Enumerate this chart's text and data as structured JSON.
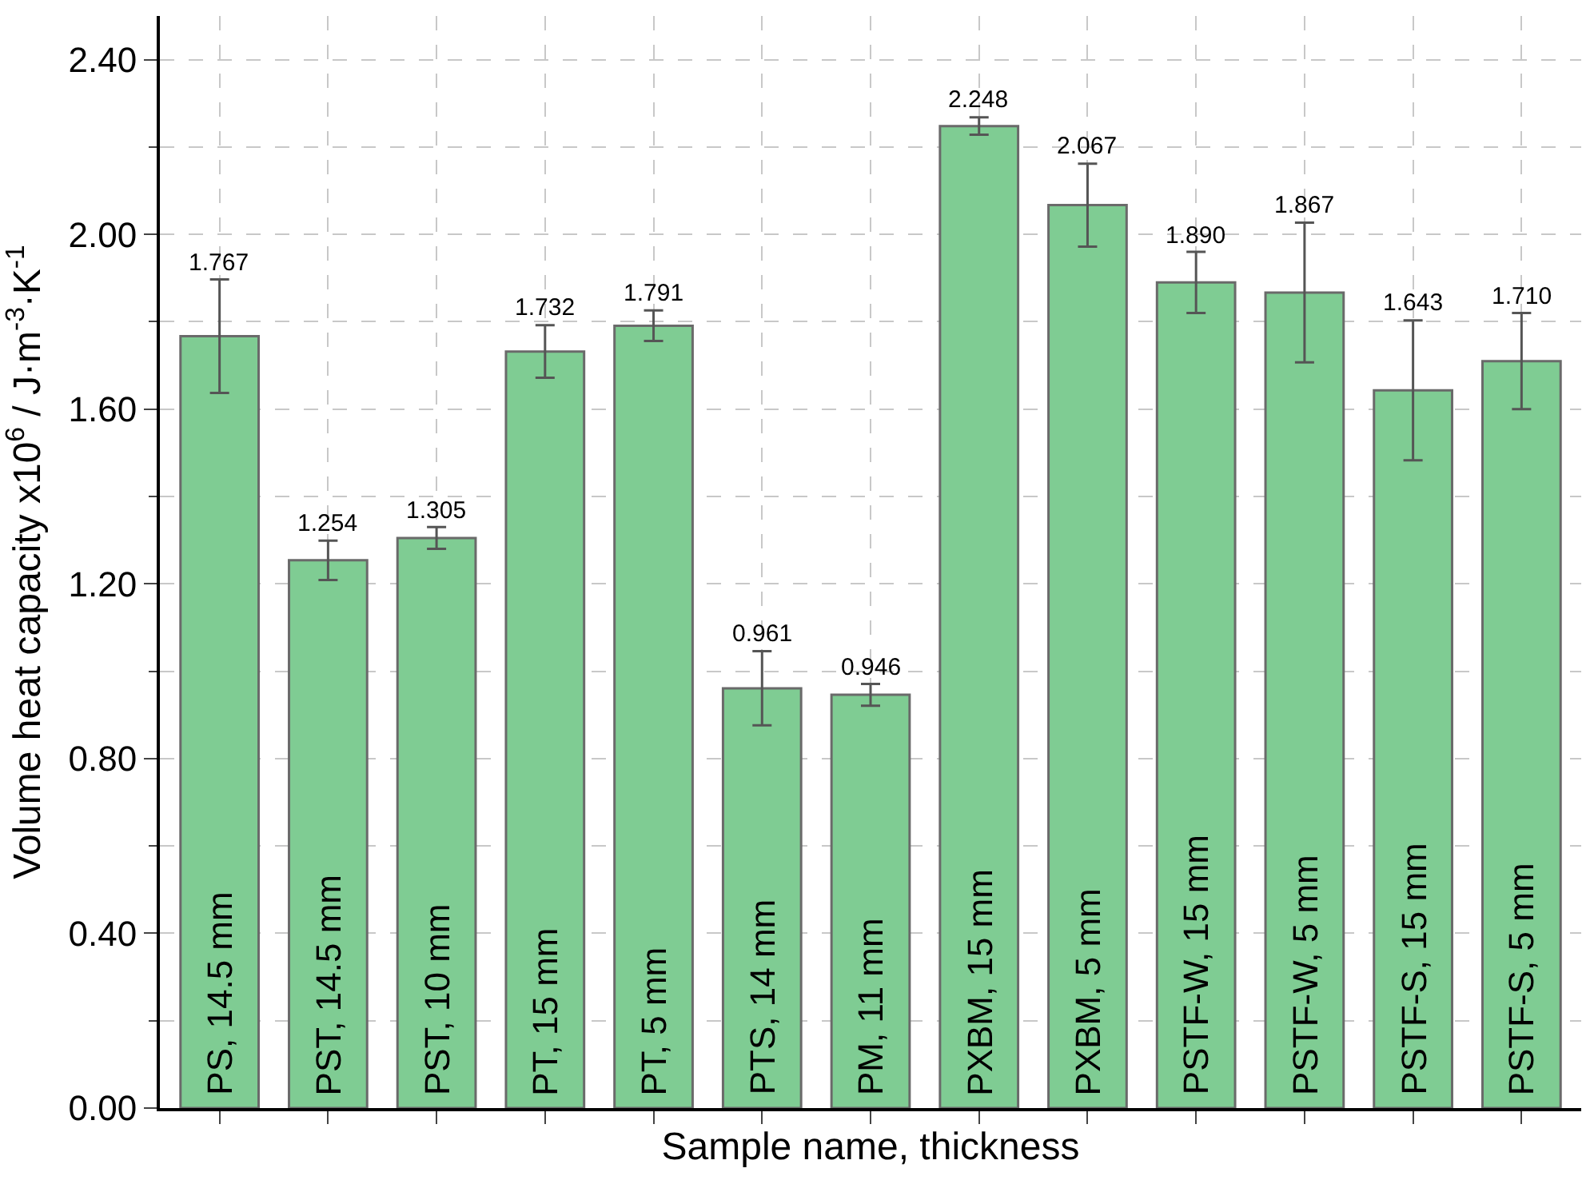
{
  "chart_data": {
    "type": "bar",
    "xlabel": "Sample name, thickness",
    "ylabel": "Volume heat capacity x10$^{6}$ / J·m$^{-3}$·K$^{-1}$",
    "categories": [
      "PS, 14.5 mm",
      "PST, 14.5 mm",
      "PST, 10 mm",
      "PT, 15 mm",
      "PT, 5 mm",
      "PTS, 14 mm",
      "PM, 11 mm",
      "PXBM, 15 mm",
      "PXBM, 5 mm",
      "PSTF-W, 15 mm",
      "PSTF-W, 5 mm",
      "PSTF-S, 15 mm",
      "PSTF-S, 5 mm"
    ],
    "values": [
      1.767,
      1.254,
      1.305,
      1.732,
      1.791,
      0.961,
      0.946,
      2.248,
      2.067,
      1.89,
      1.867,
      1.643,
      1.71
    ],
    "errors": [
      0.13,
      0.045,
      0.025,
      0.06,
      0.035,
      0.085,
      0.025,
      0.02,
      0.095,
      0.07,
      0.16,
      0.16,
      0.11
    ],
    "color": "#7fcc93",
    "value_labels": [
      "1.767",
      "1.254",
      "1.305",
      "1.732",
      "1.791",
      "0.961",
      "0.946",
      "2.248",
      "2.067",
      "1.890",
      "1.867",
      "1.643",
      "1.710"
    ],
    "ylim": [
      0,
      2.5
    ],
    "yticks": [
      {
        "value": 0,
        "label": "0.00"
      },
      {
        "value": 0.4,
        "label": "0.40"
      },
      {
        "value": 0.8,
        "label": "0.80"
      },
      {
        "value": 1.2,
        "label": "1.20"
      },
      {
        "value": 1.6,
        "label": "1.60"
      },
      {
        "value": 2.0,
        "label": "2.00"
      },
      {
        "value": 2.4,
        "label": "2.40"
      }
    ],
    "grid": true
  }
}
